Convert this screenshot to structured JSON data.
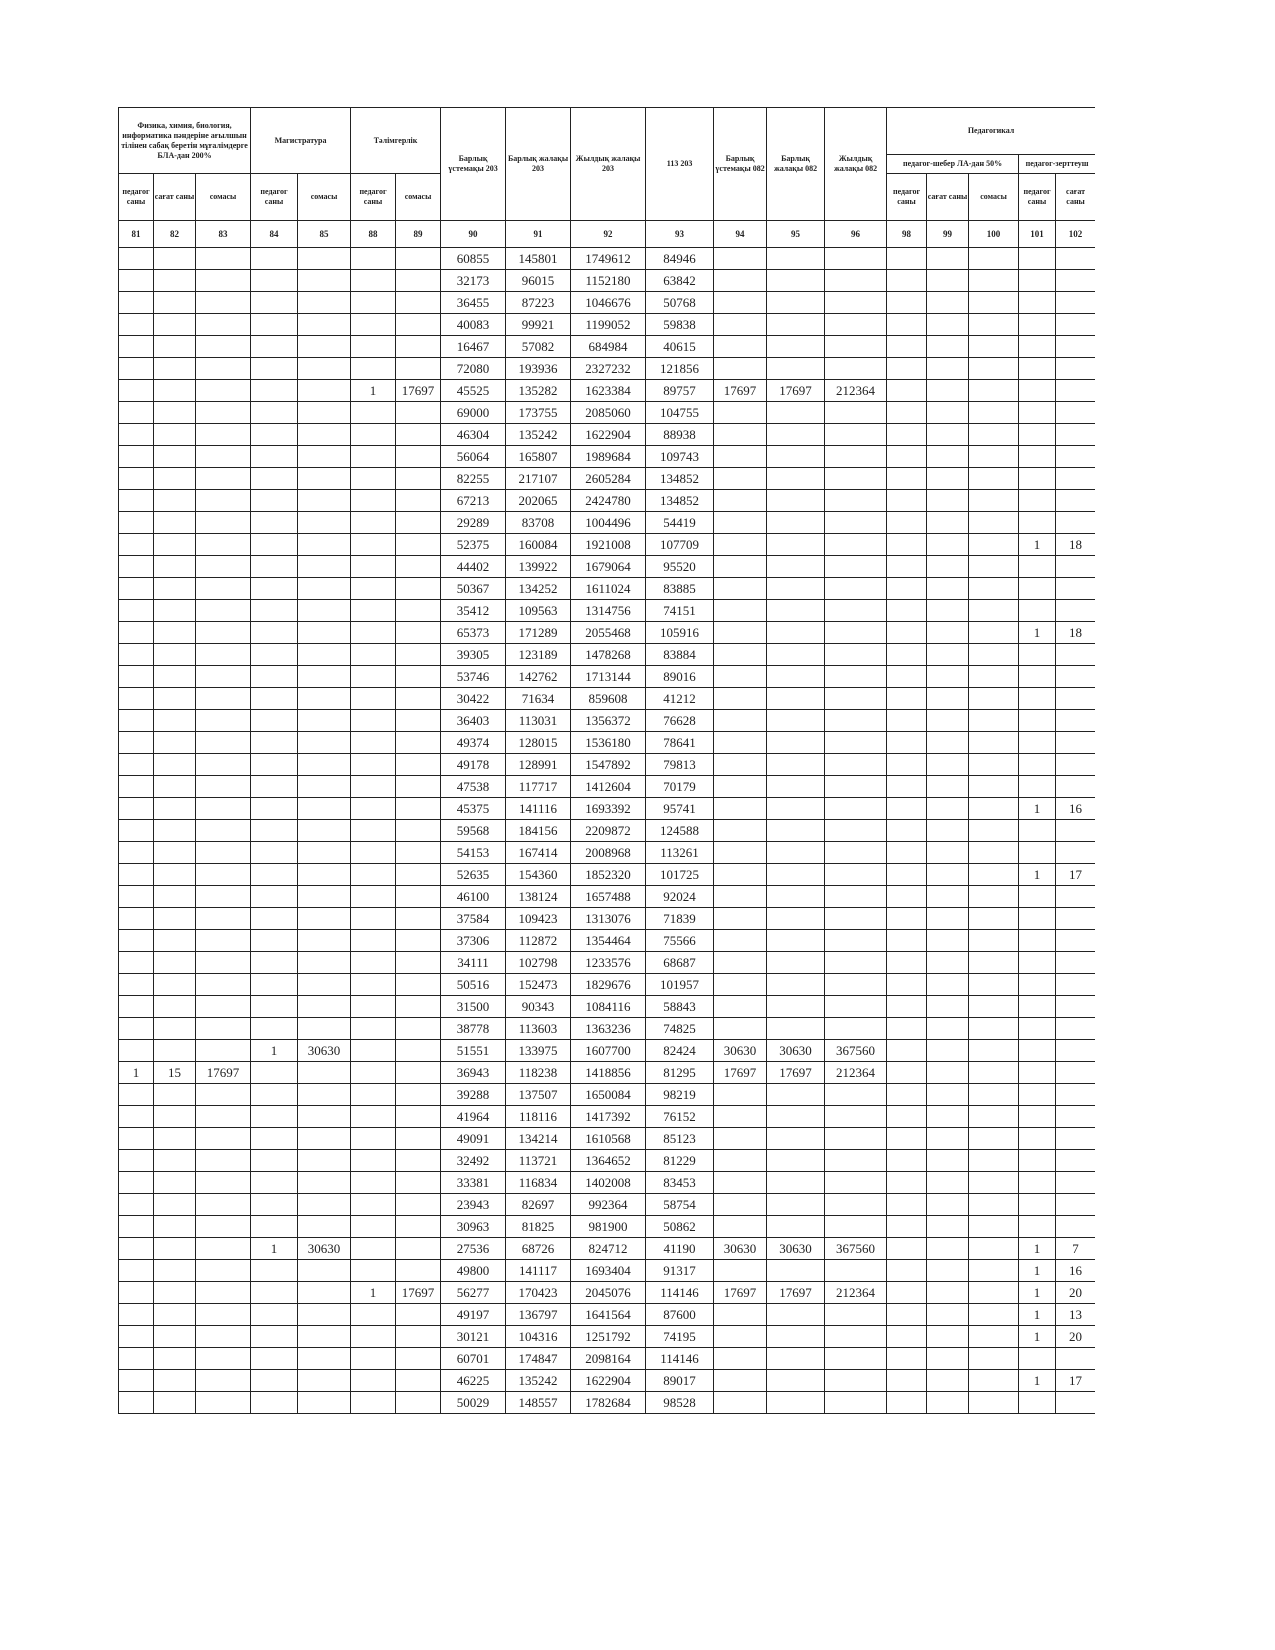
{
  "header": {
    "groups": [
      "Физика, химия, биология, информатика пәндеріне ағылшын тілінен сабақ беретін мұғалімдерге БЛА-дан 200%",
      "Магистратура",
      "Тәлімгерлік",
      "Педагогикал"
    ],
    "single": [
      "Барлық үстемақы 203",
      "Барлық жалақы 203",
      "Жылдық жалақы 203",
      "113 203",
      "Барлық үстемақы 082",
      "Барлық жалақы 082",
      "Жылдық жалақы 082"
    ],
    "subgroups": [
      "педагог-шебер ЛА-дан 50%",
      "педагог-зерттеуш"
    ],
    "subheaders": [
      "педагог саны",
      "сағат саны",
      "сомасы",
      "педагог саны",
      "сомасы",
      "педагог саны",
      "сомасы",
      "педагог саны",
      "сағат саны",
      "сомасы",
      "педагог саны",
      "сағат саны"
    ],
    "column_numbers": [
      81,
      82,
      83,
      84,
      85,
      88,
      89,
      90,
      91,
      92,
      93,
      94,
      95,
      96,
      98,
      99,
      100,
      101,
      102
    ]
  },
  "table": {
    "rows": [
      [
        null,
        null,
        null,
        null,
        null,
        null,
        null,
        60855,
        145801,
        1749612,
        84946,
        null,
        null,
        null,
        null,
        null,
        null,
        null,
        null
      ],
      [
        null,
        null,
        null,
        null,
        null,
        null,
        null,
        32173,
        96015,
        1152180,
        63842,
        null,
        null,
        null,
        null,
        null,
        null,
        null,
        null
      ],
      [
        null,
        null,
        null,
        null,
        null,
        null,
        null,
        36455,
        87223,
        1046676,
        50768,
        null,
        null,
        null,
        null,
        null,
        null,
        null,
        null
      ],
      [
        null,
        null,
        null,
        null,
        null,
        null,
        null,
        40083,
        99921,
        1199052,
        59838,
        null,
        null,
        null,
        null,
        null,
        null,
        null,
        null
      ],
      [
        null,
        null,
        null,
        null,
        null,
        null,
        null,
        16467,
        57082,
        684984,
        40615,
        null,
        null,
        null,
        null,
        null,
        null,
        null,
        null
      ],
      [
        null,
        null,
        null,
        null,
        null,
        null,
        null,
        72080,
        193936,
        2327232,
        121856,
        null,
        null,
        null,
        null,
        null,
        null,
        null,
        null
      ],
      [
        null,
        null,
        null,
        null,
        null,
        1,
        17697,
        45525,
        135282,
        1623384,
        89757,
        17697,
        17697,
        212364,
        null,
        null,
        null,
        null,
        null
      ],
      [
        null,
        null,
        null,
        null,
        null,
        null,
        null,
        69000,
        173755,
        2085060,
        104755,
        null,
        null,
        null,
        null,
        null,
        null,
        null,
        null
      ],
      [
        null,
        null,
        null,
        null,
        null,
        null,
        null,
        46304,
        135242,
        1622904,
        88938,
        null,
        null,
        null,
        null,
        null,
        null,
        null,
        null
      ],
      [
        null,
        null,
        null,
        null,
        null,
        null,
        null,
        56064,
        165807,
        1989684,
        109743,
        null,
        null,
        null,
        null,
        null,
        null,
        null,
        null
      ],
      [
        null,
        null,
        null,
        null,
        null,
        null,
        null,
        82255,
        217107,
        2605284,
        134852,
        null,
        null,
        null,
        null,
        null,
        null,
        null,
        null
      ],
      [
        null,
        null,
        null,
        null,
        null,
        null,
        null,
        67213,
        202065,
        2424780,
        134852,
        null,
        null,
        null,
        null,
        null,
        null,
        null,
        null
      ],
      [
        null,
        null,
        null,
        null,
        null,
        null,
        null,
        29289,
        83708,
        1004496,
        54419,
        null,
        null,
        null,
        null,
        null,
        null,
        null,
        null
      ],
      [
        null,
        null,
        null,
        null,
        null,
        null,
        null,
        52375,
        160084,
        1921008,
        107709,
        null,
        null,
        null,
        null,
        null,
        null,
        1,
        18
      ],
      [
        null,
        null,
        null,
        null,
        null,
        null,
        null,
        44402,
        139922,
        1679064,
        95520,
        null,
        null,
        null,
        null,
        null,
        null,
        null,
        null
      ],
      [
        null,
        null,
        null,
        null,
        null,
        null,
        null,
        50367,
        134252,
        1611024,
        83885,
        null,
        null,
        null,
        null,
        null,
        null,
        null,
        null
      ],
      [
        null,
        null,
        null,
        null,
        null,
        null,
        null,
        35412,
        109563,
        1314756,
        74151,
        null,
        null,
        null,
        null,
        null,
        null,
        null,
        null
      ],
      [
        null,
        null,
        null,
        null,
        null,
        null,
        null,
        65373,
        171289,
        2055468,
        105916,
        null,
        null,
        null,
        null,
        null,
        null,
        1,
        18
      ],
      [
        null,
        null,
        null,
        null,
        null,
        null,
        null,
        39305,
        123189,
        1478268,
        83884,
        null,
        null,
        null,
        null,
        null,
        null,
        null,
        null
      ],
      [
        null,
        null,
        null,
        null,
        null,
        null,
        null,
        53746,
        142762,
        1713144,
        89016,
        null,
        null,
        null,
        null,
        null,
        null,
        null,
        null
      ],
      [
        null,
        null,
        null,
        null,
        null,
        null,
        null,
        30422,
        71634,
        859608,
        41212,
        null,
        null,
        null,
        null,
        null,
        null,
        null,
        null
      ],
      [
        null,
        null,
        null,
        null,
        null,
        null,
        null,
        36403,
        113031,
        1356372,
        76628,
        null,
        null,
        null,
        null,
        null,
        null,
        null,
        null
      ],
      [
        null,
        null,
        null,
        null,
        null,
        null,
        null,
        49374,
        128015,
        1536180,
        78641,
        null,
        null,
        null,
        null,
        null,
        null,
        null,
        null
      ],
      [
        null,
        null,
        null,
        null,
        null,
        null,
        null,
        49178,
        128991,
        1547892,
        79813,
        null,
        null,
        null,
        null,
        null,
        null,
        null,
        null
      ],
      [
        null,
        null,
        null,
        null,
        null,
        null,
        null,
        47538,
        117717,
        1412604,
        70179,
        null,
        null,
        null,
        null,
        null,
        null,
        null,
        null
      ],
      [
        null,
        null,
        null,
        null,
        null,
        null,
        null,
        45375,
        141116,
        1693392,
        95741,
        null,
        null,
        null,
        null,
        null,
        null,
        1,
        16
      ],
      [
        null,
        null,
        null,
        null,
        null,
        null,
        null,
        59568,
        184156,
        2209872,
        124588,
        null,
        null,
        null,
        null,
        null,
        null,
        null,
        null
      ],
      [
        null,
        null,
        null,
        null,
        null,
        null,
        null,
        54153,
        167414,
        2008968,
        113261,
        null,
        null,
        null,
        null,
        null,
        null,
        null,
        null
      ],
      [
        null,
        null,
        null,
        null,
        null,
        null,
        null,
        52635,
        154360,
        1852320,
        101725,
        null,
        null,
        null,
        null,
        null,
        null,
        1,
        17
      ],
      [
        null,
        null,
        null,
        null,
        null,
        null,
        null,
        46100,
        138124,
        1657488,
        92024,
        null,
        null,
        null,
        null,
        null,
        null,
        null,
        null
      ],
      [
        null,
        null,
        null,
        null,
        null,
        null,
        null,
        37584,
        109423,
        1313076,
        71839,
        null,
        null,
        null,
        null,
        null,
        null,
        null,
        null
      ],
      [
        null,
        null,
        null,
        null,
        null,
        null,
        null,
        37306,
        112872,
        1354464,
        75566,
        null,
        null,
        null,
        null,
        null,
        null,
        null,
        null
      ],
      [
        null,
        null,
        null,
        null,
        null,
        null,
        null,
        34111,
        102798,
        1233576,
        68687,
        null,
        null,
        null,
        null,
        null,
        null,
        null,
        null
      ],
      [
        null,
        null,
        null,
        null,
        null,
        null,
        null,
        50516,
        152473,
        1829676,
        101957,
        null,
        null,
        null,
        null,
        null,
        null,
        null,
        null
      ],
      [
        null,
        null,
        null,
        null,
        null,
        null,
        null,
        31500,
        90343,
        1084116,
        58843,
        null,
        null,
        null,
        null,
        null,
        null,
        null,
        null
      ],
      [
        null,
        null,
        null,
        null,
        null,
        null,
        null,
        38778,
        113603,
        1363236,
        74825,
        null,
        null,
        null,
        null,
        null,
        null,
        null,
        null
      ],
      [
        null,
        null,
        null,
        1,
        30630,
        null,
        null,
        51551,
        133975,
        1607700,
        82424,
        30630,
        30630,
        367560,
        null,
        null,
        null,
        null,
        null
      ],
      [
        1,
        15,
        17697,
        null,
        null,
        null,
        null,
        36943,
        118238,
        1418856,
        81295,
        17697,
        17697,
        212364,
        null,
        null,
        null,
        null,
        null
      ],
      [
        null,
        null,
        null,
        null,
        null,
        null,
        null,
        39288,
        137507,
        1650084,
        98219,
        null,
        null,
        null,
        null,
        null,
        null,
        null,
        null
      ],
      [
        null,
        null,
        null,
        null,
        null,
        null,
        null,
        41964,
        118116,
        1417392,
        76152,
        null,
        null,
        null,
        null,
        null,
        null,
        null,
        null
      ],
      [
        null,
        null,
        null,
        null,
        null,
        null,
        null,
        49091,
        134214,
        1610568,
        85123,
        null,
        null,
        null,
        null,
        null,
        null,
        null,
        null
      ],
      [
        null,
        null,
        null,
        null,
        null,
        null,
        null,
        32492,
        113721,
        1364652,
        81229,
        null,
        null,
        null,
        null,
        null,
        null,
        null,
        null
      ],
      [
        null,
        null,
        null,
        null,
        null,
        null,
        null,
        33381,
        116834,
        1402008,
        83453,
        null,
        null,
        null,
        null,
        null,
        null,
        null,
        null
      ],
      [
        null,
        null,
        null,
        null,
        null,
        null,
        null,
        23943,
        82697,
        992364,
        58754,
        null,
        null,
        null,
        null,
        null,
        null,
        null,
        null
      ],
      [
        null,
        null,
        null,
        null,
        null,
        null,
        null,
        30963,
        81825,
        981900,
        50862,
        null,
        null,
        null,
        null,
        null,
        null,
        null,
        null
      ],
      [
        null,
        null,
        null,
        1,
        30630,
        null,
        null,
        27536,
        68726,
        824712,
        41190,
        30630,
        30630,
        367560,
        null,
        null,
        null,
        1,
        7
      ],
      [
        null,
        null,
        null,
        null,
        null,
        null,
        null,
        49800,
        141117,
        1693404,
        91317,
        null,
        null,
        null,
        null,
        null,
        null,
        1,
        16
      ],
      [
        null,
        null,
        null,
        null,
        null,
        1,
        17697,
        56277,
        170423,
        2045076,
        114146,
        17697,
        17697,
        212364,
        null,
        null,
        null,
        1,
        20
      ],
      [
        null,
        null,
        null,
        null,
        null,
        null,
        null,
        49197,
        136797,
        1641564,
        87600,
        null,
        null,
        null,
        null,
        null,
        null,
        1,
        13
      ],
      [
        null,
        null,
        null,
        null,
        null,
        null,
        null,
        30121,
        104316,
        1251792,
        74195,
        null,
        null,
        null,
        null,
        null,
        null,
        1,
        20
      ],
      [
        null,
        null,
        null,
        null,
        null,
        null,
        null,
        60701,
        174847,
        2098164,
        114146,
        null,
        null,
        null,
        null,
        null,
        null,
        null,
        null
      ],
      [
        null,
        null,
        null,
        null,
        null,
        null,
        null,
        46225,
        135242,
        1622904,
        89017,
        null,
        null,
        null,
        null,
        null,
        null,
        1,
        17
      ],
      [
        null,
        null,
        null,
        null,
        null,
        null,
        null,
        50029,
        148557,
        1782684,
        98528,
        null,
        null,
        null,
        null,
        null,
        null,
        null,
        null
      ]
    ]
  }
}
